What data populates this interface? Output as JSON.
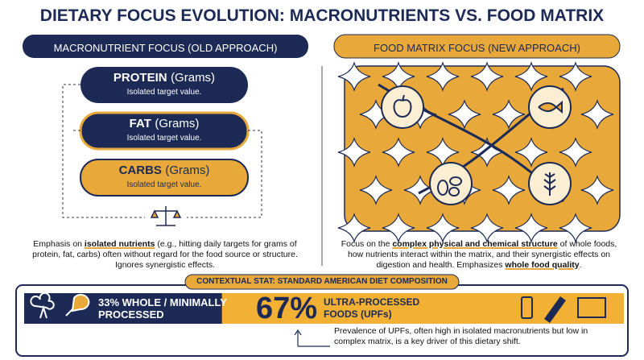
{
  "title": "DIETARY FOCUS EVOLUTION: MACRONUTRIENTS VS. FOOD MATRIX",
  "left": {
    "header": "MACRONUTRIENT FOCUS (OLD APPROACH)",
    "boxes": [
      {
        "name": "PROTEIN",
        "unit": "(Grams)",
        "note": "Isolated target value."
      },
      {
        "name": "FAT",
        "unit": "(Grams)",
        "note": "Isolated target value."
      },
      {
        "name": "CARBS",
        "unit": "(Grams)",
        "note": "Isolated target value."
      }
    ],
    "description": [
      "Emphasis on ",
      "isolated nutrients",
      " (e.g., hitting daily targets for grams of protein, fat, carbs) often without regard for the food source or structure. Ignores synergistic effects."
    ]
  },
  "right": {
    "header": "FOOD MATRIX FOCUS (NEW APPROACH)",
    "description": [
      "Focus on the ",
      "complex physical and chemical structure",
      " of whole foods, how nutrients interact within the matrix, and their synergistic effects on digestion and health. Emphasizes ",
      "whole food quality",
      "."
    ]
  },
  "stat": {
    "label": "CONTEXTUAL STAT: STANDARD AMERICAN DIET COMPOSITION",
    "segments": [
      {
        "value": 33,
        "label": "33%",
        "text": "WHOLE / MINIMALLY PROCESSED"
      },
      {
        "value": 67,
        "label": "67%",
        "text": "ULTRA-PROCESSED FOODS (UPFs)"
      }
    ],
    "note": "Prevalence of UPFs, often high in isolated macronutrients but low in complex matrix, is a key driver of this dietary shift."
  }
}
